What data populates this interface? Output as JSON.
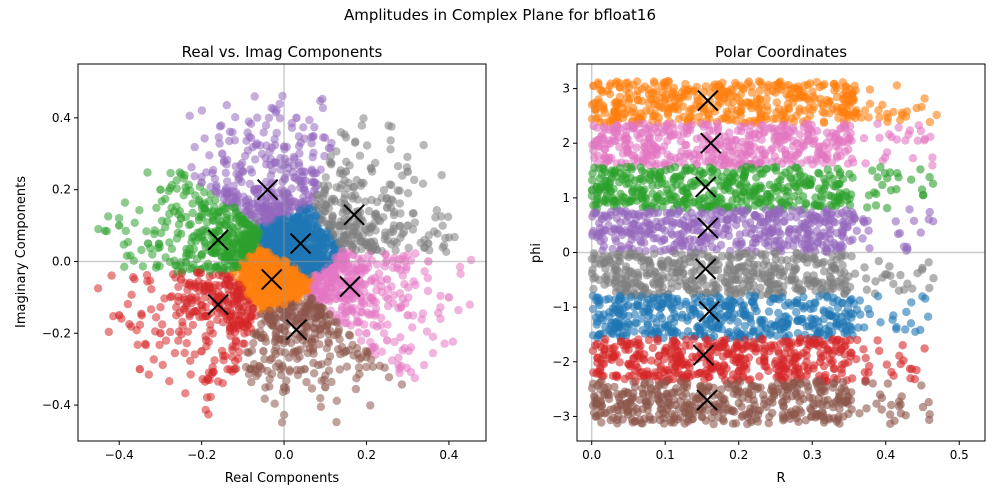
{
  "figure_title": "Amplitudes in Complex Plane for bfloat16",
  "colors": {
    "tab_blue": "#1f77b4",
    "tab_orange": "#ff7f0e",
    "tab_green": "#2ca02c",
    "tab_red": "#d62728",
    "tab_purple": "#9467bd",
    "tab_brown": "#8c564b",
    "tab_pink": "#e377c2",
    "tab_gray": "#7f7f7f"
  },
  "chart_data": [
    {
      "type": "scatter",
      "title": "Real vs. Imag Components",
      "xlabel": "Real Components",
      "ylabel": "Imaginary Components",
      "xlim": [
        -0.5,
        0.49
      ],
      "ylim": [
        -0.5,
        0.55
      ],
      "xticks": [
        -0.4,
        -0.2,
        0.0,
        0.2,
        0.4
      ],
      "xtick_labels": [
        "−0.4",
        "−0.2",
        "0.0",
        "0.2",
        "0.4"
      ],
      "yticks": [
        -0.4,
        -0.2,
        0.0,
        0.2,
        0.4
      ],
      "ytick_labels": [
        "−0.4",
        "−0.2",
        "0.0",
        "0.2",
        "0.4"
      ],
      "reference_lines": {
        "x": 0,
        "y": 0
      },
      "clusters": [
        {
          "color": "#1f77b4",
          "centroid": [
            0.04,
            0.05
          ],
          "samples": [
            [
              0.02,
              0.1
            ],
            [
              0.06,
              0.12
            ],
            [
              0.09,
              0.08
            ],
            [
              0.1,
              0.02
            ],
            [
              0.05,
              -0.02
            ],
            [
              0.0,
              0.05
            ],
            [
              0.03,
              0.06
            ]
          ]
        },
        {
          "color": "#ff7f0e",
          "centroid": [
            -0.03,
            -0.05
          ],
          "samples": [
            [
              -0.05,
              0.0
            ],
            [
              -0.02,
              -0.1
            ],
            [
              0.0,
              -0.12
            ],
            [
              -0.06,
              -0.08
            ],
            [
              0.02,
              -0.04
            ],
            [
              -0.04,
              -0.05
            ]
          ]
        },
        {
          "color": "#2ca02c",
          "centroid": [
            -0.16,
            0.06
          ],
          "samples": [
            [
              -0.12,
              0.15
            ],
            [
              -0.25,
              0.12
            ],
            [
              -0.33,
              0.05
            ],
            [
              -0.3,
              0.2
            ],
            [
              -0.4,
              0.1
            ],
            [
              -0.2,
              0.02
            ],
            [
              -0.14,
              0.1
            ]
          ]
        },
        {
          "color": "#d62728",
          "centroid": [
            -0.16,
            -0.12
          ],
          "samples": [
            [
              -0.25,
              -0.05
            ],
            [
              -0.3,
              -0.2
            ],
            [
              -0.2,
              -0.25
            ],
            [
              -0.12,
              -0.3
            ],
            [
              -0.4,
              -0.15
            ],
            [
              -0.35,
              -0.3
            ],
            [
              -0.15,
              -0.1
            ],
            [
              -0.1,
              -0.18
            ]
          ]
        },
        {
          "color": "#9467bd",
          "centroid": [
            -0.04,
            0.2
          ],
          "samples": [
            [
              -0.1,
              0.25
            ],
            [
              0.0,
              0.32
            ],
            [
              -0.15,
              0.3
            ],
            [
              0.05,
              0.25
            ],
            [
              -0.05,
              0.15
            ],
            [
              -0.2,
              0.22
            ],
            [
              0.03,
              0.4
            ]
          ]
        },
        {
          "color": "#8c564b",
          "centroid": [
            0.03,
            -0.19
          ],
          "samples": [
            [
              0.05,
              -0.3
            ],
            [
              -0.05,
              -0.25
            ],
            [
              0.1,
              -0.35
            ],
            [
              0.15,
              -0.25
            ],
            [
              0.0,
              -0.35
            ],
            [
              -0.08,
              -0.3
            ],
            [
              0.08,
              -0.15
            ]
          ]
        },
        {
          "color": "#e377c2",
          "centroid": [
            0.16,
            -0.07
          ],
          "samples": [
            [
              0.25,
              -0.05
            ],
            [
              0.3,
              -0.15
            ],
            [
              0.2,
              -0.2
            ],
            [
              0.35,
              0.0
            ],
            [
              0.25,
              -0.22
            ],
            [
              0.12,
              -0.05
            ],
            [
              0.4,
              -0.1
            ]
          ]
        },
        {
          "color": "#7f7f7f",
          "centroid": [
            0.17,
            0.13
          ],
          "samples": [
            [
              0.25,
              0.15
            ],
            [
              0.15,
              0.25
            ],
            [
              0.3,
              0.1
            ],
            [
              0.2,
              0.05
            ],
            [
              0.1,
              0.2
            ],
            [
              0.3,
              0.25
            ],
            [
              0.35,
              0.05
            ]
          ]
        }
      ]
    },
    {
      "type": "scatter",
      "title": "Polar Coordinates",
      "xlabel": "R",
      "ylabel": "phi",
      "xlim": [
        -0.02,
        0.535
      ],
      "ylim": [
        -3.45,
        3.45
      ],
      "xticks": [
        0.0,
        0.1,
        0.2,
        0.3,
        0.4,
        0.5
      ],
      "xtick_labels": [
        "0.0",
        "0.1",
        "0.2",
        "0.3",
        "0.4",
        "0.5"
      ],
      "yticks": [
        -3,
        -2,
        -1,
        0,
        1,
        2,
        3
      ],
      "ytick_labels": [
        "−3",
        "−2",
        "−1",
        "0",
        "1",
        "2",
        "3"
      ],
      "reference_lines": {
        "x": 0,
        "y": 0
      },
      "bands": [
        {
          "color": "#ff7f0e",
          "phi_range": [
            2.36,
            3.14
          ],
          "r_max": 0.36,
          "centroid": [
            0.158,
            2.78
          ]
        },
        {
          "color": "#e377c2",
          "phi_range": [
            1.57,
            2.36
          ],
          "r_max": 0.355,
          "centroid": [
            0.162,
            2.0
          ]
        },
        {
          "color": "#2ca02c",
          "phi_range": [
            0.79,
            1.57
          ],
          "r_max": 0.355,
          "centroid": [
            0.155,
            1.2
          ]
        },
        {
          "color": "#9467bd",
          "phi_range": [
            0.0,
            0.79
          ],
          "r_max": 0.355,
          "centroid": [
            0.158,
            0.45
          ]
        },
        {
          "color": "#7f7f7f",
          "phi_range": [
            -0.79,
            0.0
          ],
          "r_max": 0.355,
          "centroid": [
            0.155,
            -0.3
          ]
        },
        {
          "color": "#1f77b4",
          "phi_range": [
            -1.57,
            -0.79
          ],
          "r_max": 0.355,
          "centroid": [
            0.16,
            -1.08
          ]
        },
        {
          "color": "#d62728",
          "phi_range": [
            -2.36,
            -1.57
          ],
          "r_max": 0.355,
          "centroid": [
            0.152,
            -1.88
          ]
        },
        {
          "color": "#8c564b",
          "phi_range": [
            -3.14,
            -2.36
          ],
          "r_max": 0.355,
          "centroid": [
            0.157,
            -2.7
          ]
        }
      ]
    }
  ]
}
